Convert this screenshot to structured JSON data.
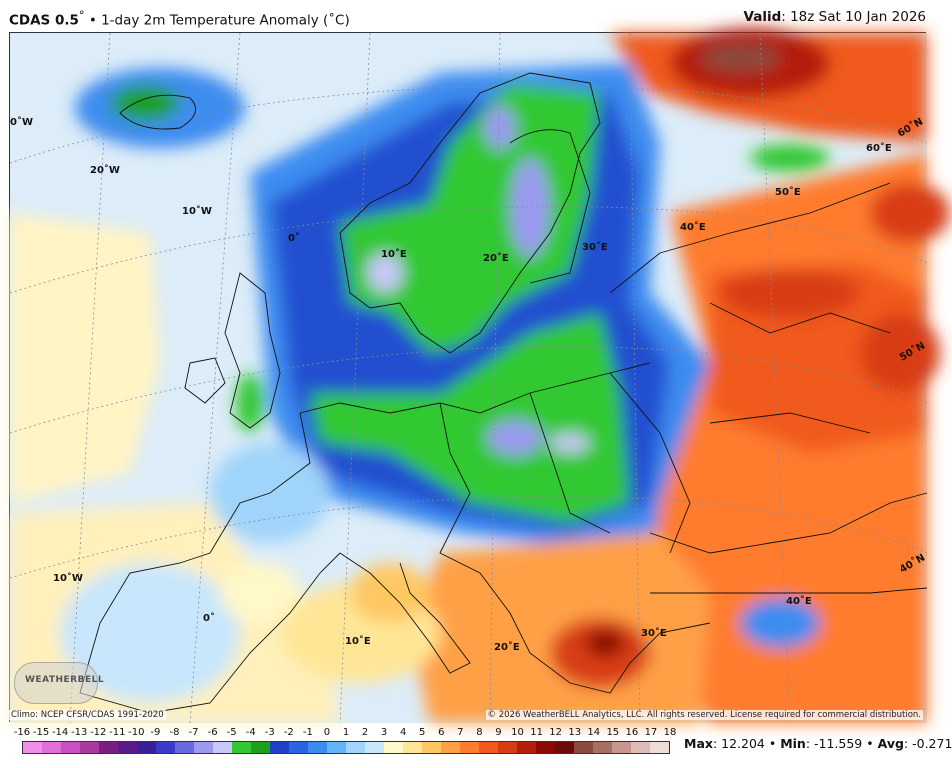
{
  "header": {
    "title_model": "CDAS 0.5",
    "title_deg": "°",
    "title_rest": " • 1-day 2m Temperature Anomaly (˚C)",
    "valid_label": "Valid",
    "valid_value": ": 18z Sat 10 Jan 2026"
  },
  "map": {
    "lon_labels": [
      "0˚W",
      "20˚W",
      "10˚W",
      "0˚",
      "10˚E",
      "20˚E",
      "30˚E",
      "40˚E",
      "50˚E",
      "60˚E",
      "60˚N",
      "50˚N",
      "40˚N",
      "10˚W",
      "0˚",
      "10˚E",
      "20˚E",
      "30˚E",
      "40˚E"
    ],
    "logo_text": "WEATHERBELL"
  },
  "footer": {
    "climo": "Climo: NCEP CFSR/CDAS 1991-2020",
    "copyright": "© 2026 WeatherBELL Analytics, LLC. All rights reserved. License required for commercial distribution."
  },
  "colorbar": {
    "labels": [
      "-16",
      "-15",
      "-14",
      "-13",
      "-12",
      "-11",
      "-10",
      "-9",
      "-8",
      "-7",
      "-6",
      "-5",
      "-4",
      "-3",
      "-2",
      "-1",
      "0",
      "1",
      "2",
      "3",
      "4",
      "5",
      "6",
      "7",
      "8",
      "9",
      "10",
      "11",
      "12",
      "13",
      "14",
      "15",
      "16",
      "17",
      "18"
    ],
    "colors": [
      "#f08ee8",
      "#e070d8",
      "#c850c0",
      "#a83aa0",
      "#7a1e84",
      "#5a1a8a",
      "#3c1e9a",
      "#3a3cc8",
      "#6a6ae0",
      "#9a9af0",
      "#c8c8f8",
      "#32c832",
      "#1ea01e",
      "#2040c8",
      "#2a64e0",
      "#3c8cf0",
      "#64b4f8",
      "#a0d4fa",
      "#c8e6fc",
      "#fff8c8",
      "#ffe696",
      "#ffc864",
      "#ffa046",
      "#ff7c2e",
      "#f05a1e",
      "#d83c14",
      "#b41e0a",
      "#8c0a06",
      "#6e0a0a",
      "#8c4a3c",
      "#a87064",
      "#c4968c",
      "#dcbcb4",
      "#f0dcd6"
    ]
  },
  "stats": {
    "max_label": "Max",
    "max_value": ": 12.204",
    "min_label": "Min",
    "min_value": ": -11.559",
    "avg_label": "Avg",
    "avg_value": ": -0.271",
    "sep": " • "
  }
}
